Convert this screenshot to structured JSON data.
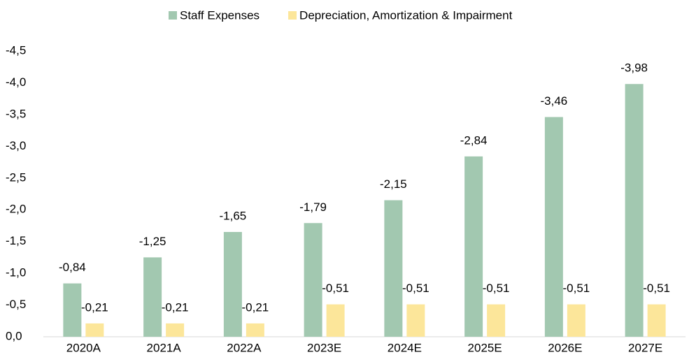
{
  "chart_data": {
    "type": "bar",
    "categories": [
      "2020A",
      "2021A",
      "2022A",
      "2023E",
      "2024E",
      "2025E",
      "2026E",
      "2027E"
    ],
    "series": [
      {
        "name": "Staff Expenses",
        "color": "#a2c8b0",
        "values": [
          -0.84,
          -1.25,
          -1.65,
          -1.79,
          -2.15,
          -2.84,
          -3.46,
          -3.98
        ],
        "value_labels": [
          "-0,84",
          "-1,25",
          "-1,65",
          "-1,79",
          "-2,15",
          "-2,84",
          "-3,46",
          "-3,98"
        ]
      },
      {
        "name": "Depreciation, Amortization & Impairment",
        "color": "#fce69a",
        "values": [
          -0.21,
          -0.21,
          -0.21,
          -0.51,
          -0.51,
          -0.51,
          -0.51,
          -0.51
        ],
        "value_labels": [
          "-0,21",
          "-0,21",
          "-0,21",
          "-0,51",
          "-0,51",
          "-0,51",
          "-0,51",
          "-0,51"
        ]
      }
    ],
    "ylim": [
      0,
      -4.5
    ],
    "yticks": [
      {
        "value": 0,
        "label": "0,0"
      },
      {
        "value": -0.5,
        "label": "-0,5"
      },
      {
        "value": -1,
        "label": "-1,0"
      },
      {
        "value": -1.5,
        "label": "-1,5"
      },
      {
        "value": -2,
        "label": "-2,0"
      },
      {
        "value": -2.5,
        "label": "-2,5"
      },
      {
        "value": -3,
        "label": "-3,0"
      },
      {
        "value": -3.5,
        "label": "-3,5"
      },
      {
        "value": -4,
        "label": "-4,0"
      },
      {
        "value": -4.5,
        "label": "-4,5"
      }
    ],
    "legend": "top"
  }
}
